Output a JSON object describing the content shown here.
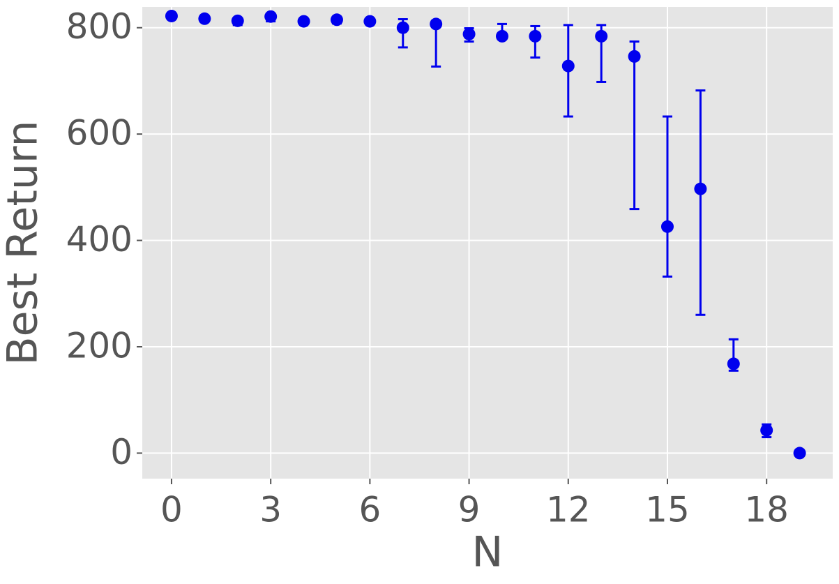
{
  "chart_data": {
    "type": "errorbar",
    "x_label": "N",
    "y_label": "Best Return",
    "color": "#0000ee",
    "grid": true,
    "x": [
      0,
      1,
      2,
      3,
      4,
      5,
      6,
      7,
      8,
      9,
      10,
      11,
      12,
      13,
      14,
      15,
      16,
      17,
      18,
      19
    ],
    "values": [
      822,
      817,
      813,
      821,
      812,
      815,
      812,
      800,
      807,
      788,
      784,
      784,
      728,
      784,
      746,
      426,
      497,
      168,
      43,
      0
    ],
    "error_low": [
      null,
      null,
      805,
      812,
      null,
      808,
      null,
      763,
      727,
      774,
      780,
      744,
      633,
      698,
      459,
      332,
      260,
      155,
      30,
      null
    ],
    "error_high": [
      null,
      null,
      818,
      822,
      null,
      818,
      null,
      816,
      813,
      799,
      807,
      803,
      805,
      805,
      774,
      633,
      682,
      214,
      54,
      null
    ],
    "xlim": [
      -0.885,
      20.0
    ],
    "ylim": [
      -48,
      839
    ],
    "xticks": [
      0,
      3,
      6,
      9,
      12,
      15,
      18
    ],
    "yticks": [
      0,
      200,
      400,
      600,
      800
    ]
  }
}
